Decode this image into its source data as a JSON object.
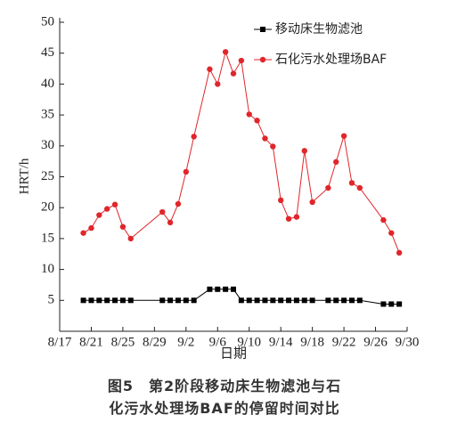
{
  "chart_data": {
    "type": "line",
    "x": [
      "8/20",
      "8/21",
      "8/22",
      "8/23",
      "8/24",
      "8/25",
      "8/26",
      "8/30",
      "8/31",
      "9/1",
      "9/2",
      "9/3",
      "9/5",
      "9/6",
      "9/7",
      "9/8",
      "9/9",
      "9/10",
      "9/11",
      "9/12",
      "9/13",
      "9/14",
      "9/15",
      "9/16",
      "9/17",
      "9/18",
      "9/20",
      "9/21",
      "9/22",
      "9/23",
      "9/24",
      "9/27",
      "9/28",
      "9/29"
    ],
    "series": [
      {
        "name": "移动床生物滤池",
        "color": "#000000",
        "marker": "square",
        "values": [
          5,
          5,
          5,
          5,
          5,
          5,
          5,
          5,
          5,
          5,
          5,
          5,
          6.8,
          6.8,
          6.8,
          6.8,
          5,
          5,
          5,
          5,
          5,
          5,
          5,
          5,
          5,
          5,
          5,
          5,
          5,
          5,
          5,
          4.4,
          4.4,
          4.4
        ]
      },
      {
        "name": "石化污水处理场BAF",
        "color": "#e0262b",
        "marker": "circle",
        "values": [
          15.9,
          16.7,
          18.8,
          19.8,
          20.5,
          16.9,
          15.0,
          19.3,
          17.6,
          20.6,
          25.8,
          31.5,
          42.4,
          40.0,
          45.2,
          41.7,
          43.8,
          35.1,
          34.1,
          31.2,
          29.9,
          21.2,
          18.2,
          18.5,
          29.2,
          20.9,
          23.2,
          27.4,
          31.6,
          24.0,
          23.2,
          18.0,
          15.9,
          12.7
        ]
      }
    ],
    "xlim": [
      "8/17",
      "9/30"
    ],
    "xticks": [
      "8/17",
      "8/21",
      "8/25",
      "8/29",
      "9/2",
      "9/6",
      "9/10",
      "9/14",
      "9/18",
      "9/22",
      "9/26",
      "9/30"
    ],
    "ylim": [
      0,
      50
    ],
    "yticks": [
      5,
      10,
      15,
      20,
      25,
      30,
      35,
      40,
      45,
      50
    ],
    "xlabel": "日期",
    "ylabel": "HRT/h",
    "legend": "upper right",
    "caption": [
      "图5　第2阶段移动床生物滤池与石",
      "化污水处理场BAF的停留时间对比"
    ]
  }
}
